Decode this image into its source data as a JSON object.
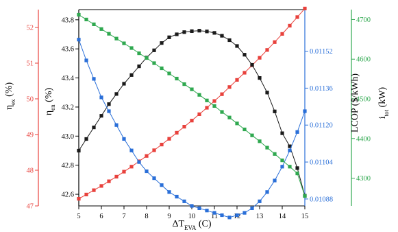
{
  "chart_data": {
    "type": "line",
    "colors": {
      "eta_ex": "#e8413c",
      "eta_en": "#1a1a1a",
      "lcop": "#2a6fd8",
      "i_tot": "#2fa84f",
      "axis_black": "#000000"
    },
    "x": [
      5.0,
      5.333,
      5.667,
      6.0,
      6.333,
      6.667,
      7.0,
      7.333,
      7.667,
      8.0,
      8.333,
      8.667,
      9.0,
      9.333,
      9.667,
      10.0,
      10.333,
      10.667,
      11.0,
      11.333,
      11.667,
      12.0,
      12.333,
      12.667,
      13.0,
      13.333,
      13.667,
      14.0,
      14.333,
      14.667,
      15.0
    ],
    "xaxis": {
      "range": [
        5,
        15
      ],
      "ticks": [
        5,
        6,
        7,
        8,
        9,
        10,
        11,
        12,
        13,
        14,
        15
      ],
      "tick_labels": [
        "5",
        "6",
        "7",
        "8",
        "9",
        "10",
        "11",
        "12",
        "13",
        "14",
        "15"
      ],
      "label_main": "ΔT",
      "label_sub": "EVA",
      "label_unit": " (C)"
    },
    "axes": {
      "eta_ex": {
        "label_main": "η",
        "label_sub": "ex",
        "label_unit": " (%)",
        "range": [
          47,
          52.5
        ],
        "ticks": [
          47,
          48,
          49,
          50,
          51,
          52
        ],
        "tick_labels": [
          "47",
          "48",
          "49",
          "50",
          "51",
          "52"
        ]
      },
      "eta_en": {
        "label_main": "η",
        "label_sub": "en",
        "label_unit": " (%)",
        "range": [
          42.52,
          43.87
        ],
        "ticks": [
          42.6,
          42.8,
          43.0,
          43.2,
          43.4,
          43.6,
          43.8
        ],
        "tick_labels": [
          "42.6",
          "42.8",
          "43.0",
          "43.2",
          "43.4",
          "43.6",
          "43.8"
        ]
      },
      "lcop": {
        "label": "LCOP ($/kWh)",
        "range": [
          0.01085,
          0.0117
        ],
        "ticks": [
          0.01088,
          0.01104,
          0.0112,
          0.01136,
          0.01152
        ],
        "tick_labels": [
          "0.01088",
          "0.01104",
          "0.01120",
          "0.01136",
          "0.01152"
        ]
      },
      "i_tot": {
        "label_main": "i",
        "label_sub": "tot",
        "label_unit": " (kW)",
        "range": [
          4230,
          4725
        ],
        "ticks": [
          4300,
          4400,
          4500,
          4600,
          4700
        ],
        "tick_labels": [
          "4300",
          "4400",
          "4500",
          "4600",
          "4700"
        ]
      }
    },
    "series": [
      {
        "key": "eta_ex",
        "axis": "eta_ex",
        "marker": "square",
        "values": [
          47.2,
          47.32,
          47.44,
          47.56,
          47.69,
          47.82,
          47.96,
          48.1,
          48.25,
          48.4,
          48.56,
          48.72,
          48.88,
          49.05,
          49.22,
          49.39,
          49.57,
          49.75,
          49.94,
          50.13,
          50.33,
          50.53,
          50.73,
          50.94,
          51.15,
          51.37,
          51.59,
          51.82,
          52.05,
          52.29,
          52.53
        ]
      },
      {
        "key": "eta_en",
        "axis": "eta_en",
        "marker": "square",
        "values": [
          42.9,
          42.98,
          43.06,
          43.14,
          43.22,
          43.29,
          43.36,
          43.42,
          43.48,
          43.54,
          43.59,
          43.64,
          43.68,
          43.7,
          43.715,
          43.722,
          43.725,
          43.72,
          43.71,
          43.69,
          43.66,
          43.62,
          43.56,
          43.49,
          43.4,
          43.3,
          43.17,
          43.02,
          42.93,
          42.78,
          42.59
        ]
      },
      {
        "key": "lcop",
        "axis": "lcop",
        "marker": "square",
        "values": [
          0.01157,
          0.01148,
          0.0114,
          0.01132,
          0.01126,
          0.0112,
          0.01114,
          0.01109,
          0.01104,
          0.011,
          0.01097,
          0.01094,
          0.01091,
          0.01089,
          0.01087,
          0.01085,
          0.01084,
          0.01083,
          0.01082,
          0.01081,
          0.0108,
          0.01081,
          0.01082,
          0.01084,
          0.01087,
          0.01091,
          0.01096,
          0.01102,
          0.01109,
          0.01117,
          0.01126
        ]
      },
      {
        "key": "i_tot",
        "axis": "i_tot",
        "marker": "square",
        "values": [
          4712,
          4700,
          4688,
          4676,
          4664,
          4652,
          4640,
          4628,
          4615,
          4603,
          4590,
          4577,
          4564,
          4551,
          4537,
          4524,
          4510,
          4496,
          4482,
          4467,
          4453,
          4438,
          4423,
          4408,
          4393,
          4377,
          4361,
          4345,
          4329,
          4312,
          4255
        ]
      }
    ]
  }
}
